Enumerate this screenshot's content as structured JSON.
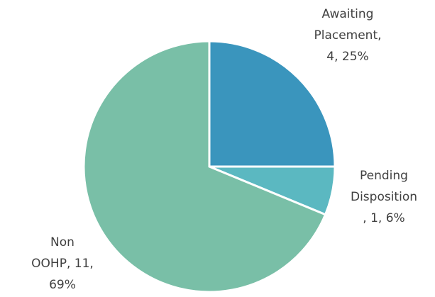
{
  "chart_data": {
    "type": "pie",
    "categories": [
      "Awaiting Placement",
      "Pending Disposition",
      "Non OOHP"
    ],
    "values": [
      4,
      1,
      11
    ],
    "labels": [
      [
        "Awaiting",
        "Placement,",
        "4, 25%"
      ],
      [
        "Pending",
        "Disposition",
        ", 1, 6%"
      ],
      [
        "Non",
        "OOHP, 11,",
        "69%"
      ]
    ],
    "colors": [
      "#3a95bd",
      "#5bb8c1",
      "#79bfa7"
    ]
  }
}
